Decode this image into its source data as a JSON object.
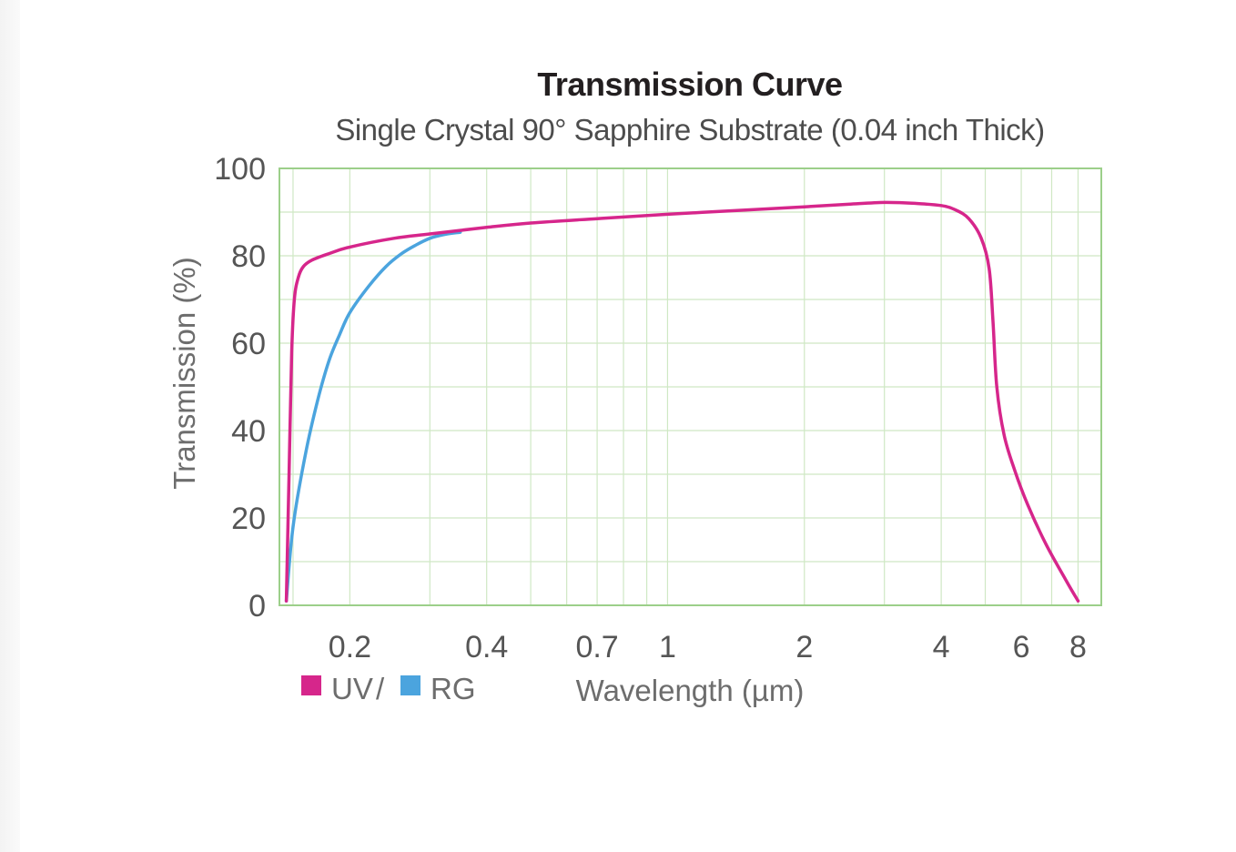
{
  "chart_data": {
    "type": "line",
    "title": "Transmission Curve",
    "subtitle": "Single Crystal 90° Sapphire Substrate (0.04 inch Thick)",
    "xlabel": "Wavelength (µm)",
    "ylabel": "Transmission (%)",
    "x_scale": "log",
    "xlim": [
      0.14,
      9
    ],
    "ylim": [
      0,
      100
    ],
    "x_ticks": [
      {
        "value": 0.2,
        "label": "0.2"
      },
      {
        "value": 0.4,
        "label": "0.4"
      },
      {
        "value": 0.7,
        "label": "0.7"
      },
      {
        "value": 1,
        "label": "1"
      },
      {
        "value": 2,
        "label": "2"
      },
      {
        "value": 4,
        "label": "4"
      },
      {
        "value": 6,
        "label": "6"
      },
      {
        "value": 8,
        "label": "8"
      }
    ],
    "x_grid": [
      0.15,
      0.2,
      0.3,
      0.4,
      0.5,
      0.6,
      0.7,
      0.8,
      0.9,
      1,
      2,
      3,
      4,
      5,
      6,
      7,
      8,
      9
    ],
    "y_ticks": [
      {
        "value": 0,
        "label": "0"
      },
      {
        "value": 20,
        "label": "20"
      },
      {
        "value": 40,
        "label": "40"
      },
      {
        "value": 60,
        "label": "60"
      },
      {
        "value": 80,
        "label": "80"
      },
      {
        "value": 100,
        "label": "100"
      }
    ],
    "y_grid_step": 10,
    "grid": true,
    "legend_position": "bottom-left",
    "legend_separator": "/",
    "series": [
      {
        "name": "UV",
        "color": "#d6268b",
        "points": [
          [
            0.145,
            1
          ],
          [
            0.147,
            30
          ],
          [
            0.149,
            58
          ],
          [
            0.151,
            70
          ],
          [
            0.154,
            75
          ],
          [
            0.158,
            77.5
          ],
          [
            0.165,
            79
          ],
          [
            0.18,
            80.5
          ],
          [
            0.2,
            82
          ],
          [
            0.25,
            84
          ],
          [
            0.3,
            85
          ],
          [
            0.4,
            86.5
          ],
          [
            0.5,
            87.5
          ],
          [
            0.7,
            88.5
          ],
          [
            1.0,
            89.5
          ],
          [
            1.5,
            90.5
          ],
          [
            2.0,
            91.2
          ],
          [
            2.5,
            91.8
          ],
          [
            3.0,
            92.2
          ],
          [
            3.5,
            92
          ],
          [
            4.0,
            91.5
          ],
          [
            4.3,
            90.5
          ],
          [
            4.6,
            88.5
          ],
          [
            4.9,
            84
          ],
          [
            5.1,
            77
          ],
          [
            5.2,
            65
          ],
          [
            5.3,
            50
          ],
          [
            5.5,
            39
          ],
          [
            5.8,
            31
          ],
          [
            6.2,
            23
          ],
          [
            6.8,
            14
          ],
          [
            7.5,
            6
          ],
          [
            8.0,
            1
          ]
        ]
      },
      {
        "name": "RG",
        "color": "#4ba4de",
        "points": [
          [
            0.145,
            1
          ],
          [
            0.15,
            18
          ],
          [
            0.16,
            35
          ],
          [
            0.17,
            47
          ],
          [
            0.18,
            56
          ],
          [
            0.19,
            62
          ],
          [
            0.2,
            67
          ],
          [
            0.22,
            73
          ],
          [
            0.24,
            77.5
          ],
          [
            0.26,
            80.5
          ],
          [
            0.28,
            82.5
          ],
          [
            0.3,
            84
          ],
          [
            0.32,
            84.8
          ],
          [
            0.35,
            85.4
          ]
        ]
      }
    ]
  }
}
